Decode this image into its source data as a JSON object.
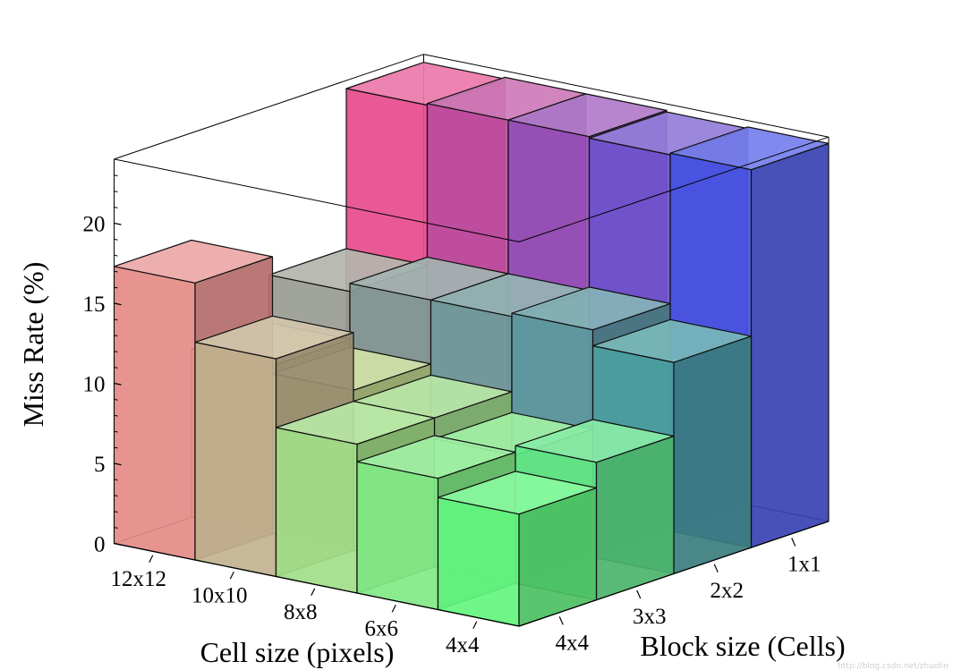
{
  "chart_data": {
    "type": "bar3d",
    "title": "",
    "zlabel": "Miss Rate (%)",
    "xlabel": "Cell size (pixels)",
    "ylabel": "Block size (Cells)",
    "cell_sizes": [
      "12x12",
      "10x10",
      "8x8",
      "6x6",
      "4x4"
    ],
    "block_sizes": [
      "1x1",
      "2x2",
      "3x3",
      "4x4"
    ],
    "zlim": [
      0,
      24
    ],
    "zticks": [
      0,
      5,
      10,
      15,
      20
    ],
    "grid": false,
    "values": {
      "4x4": [
        23.6,
        13.2,
        8.6,
        7.0
      ],
      "6x6": [
        23.5,
        14.2,
        8.0,
        8.2
      ],
      "8x8": [
        23.6,
        14.0,
        9.3,
        9.3
      ],
      "10x10": [
        23.6,
        14.0,
        10.0,
        13.6
      ],
      "12x12": [
        23.5,
        13.5,
        10.5,
        17.3
      ]
    }
  },
  "watermark": "http://blog.csdn.net/zhuolin"
}
